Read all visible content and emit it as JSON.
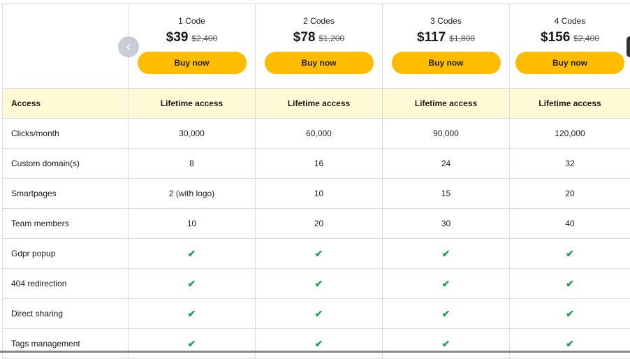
{
  "plans": [
    {
      "name": "1 Code",
      "price": "$39",
      "old_price": "$2,400",
      "button": "Buy now"
    },
    {
      "name": "2 Codes",
      "price": "$78",
      "old_price": "$1,200",
      "button": "Buy now"
    },
    {
      "name": "3 Codes",
      "price": "$117",
      "old_price": "$1,800",
      "button": "Buy now"
    },
    {
      "name": "4 Codes",
      "price": "$156",
      "old_price": "$2,400",
      "button": "Buy now"
    }
  ],
  "rows": [
    {
      "label": "Access",
      "values": [
        "Lifetime access",
        "Lifetime access",
        "Lifetime access",
        "Lifetime access"
      ],
      "highlight": true
    },
    {
      "label": "Clicks/month",
      "values": [
        "30,000",
        "60,000",
        "90,000",
        "120,000"
      ]
    },
    {
      "label": "Custom domain(s)",
      "values": [
        "8",
        "16",
        "24",
        "32"
      ]
    },
    {
      "label": "Smartpages",
      "values": [
        "2 (with logo)",
        "10",
        "15",
        "20"
      ]
    },
    {
      "label": "Team members",
      "values": [
        "10",
        "20",
        "30",
        "40"
      ]
    },
    {
      "label": "Gdpr popup",
      "values": [
        "check",
        "check",
        "check",
        "check"
      ]
    },
    {
      "label": "404 redirection",
      "values": [
        "check",
        "check",
        "check",
        "check"
      ]
    },
    {
      "label": "Direct sharing",
      "values": [
        "check",
        "check",
        "check",
        "check"
      ]
    },
    {
      "label": "Tags management",
      "values": [
        "check",
        "check",
        "check",
        "check"
      ]
    }
  ],
  "colors": {
    "button": "#ffbc00",
    "highlight_row": "#fff9d6",
    "check": "#1fa24a"
  },
  "icons": {
    "prev": "chevron-left-icon",
    "next": "chevron-right-icon",
    "check": "check-icon"
  }
}
